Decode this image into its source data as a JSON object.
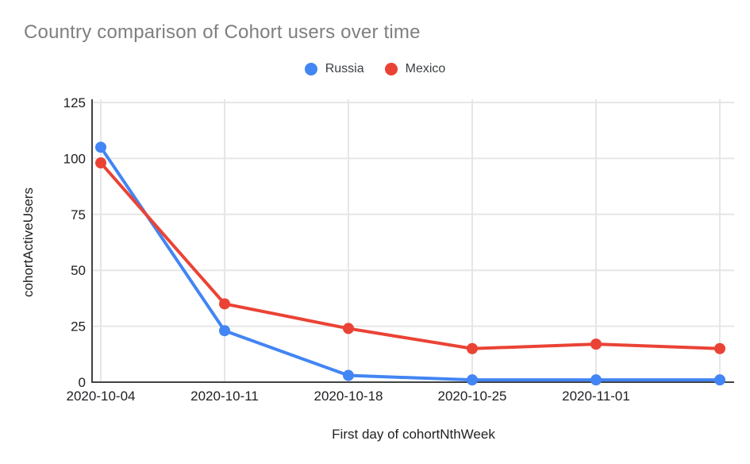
{
  "chart_data": {
    "type": "line",
    "title": "Country comparison of Cohort users over time",
    "xlabel": "First day of cohortNthWeek",
    "ylabel": "cohortActiveUsers",
    "categories": [
      "2020-10-04",
      "2020-10-11",
      "2020-10-18",
      "2020-10-25",
      "2020-11-01",
      ""
    ],
    "series": [
      {
        "name": "Russia",
        "color": "#4285F4",
        "values": [
          105,
          23,
          3,
          1,
          1,
          1
        ]
      },
      {
        "name": "Mexico",
        "color": "#EA4335",
        "values": [
          98,
          35,
          24,
          15,
          17,
          15
        ]
      }
    ],
    "ylim": [
      0,
      125
    ],
    "yticks": [
      0,
      25,
      50,
      75,
      100,
      125
    ],
    "grid": true,
    "legend_position": "top-center",
    "colors": {
      "title": "#7f7f7f",
      "tick_label": "#202124",
      "axis_line": "#424242",
      "gridline": "#e6e6e6",
      "legend_text": "#3c4043",
      "background": "#ffffff"
    }
  }
}
